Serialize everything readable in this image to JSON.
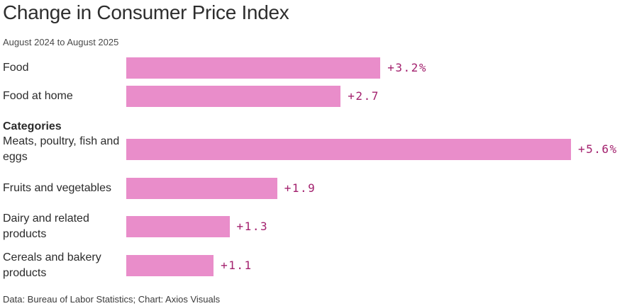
{
  "title": "Change in Consumer Price Index",
  "subtitle": "August 2024 to August 2025",
  "section_heading": "Categories",
  "footer": "Data: Bureau of Labor Statistics; Chart: Axios Visuals",
  "colors": {
    "bar": "#e98dca",
    "value_label": "#a3216e"
  },
  "chart_data": {
    "type": "bar",
    "orientation": "horizontal",
    "title": "Change in Consumer Price Index",
    "subtitle": "August 2024 to August 2025",
    "categories": [
      "Food",
      "Food at home",
      "Meats, poultry, fish and eggs",
      "Fruits and vegetables",
      "Dairy and related products",
      "Cereals and bakery products"
    ],
    "values": [
      3.2,
      2.7,
      5.6,
      1.9,
      1.3,
      1.1
    ],
    "value_labels": [
      "+3.2%",
      "+2.7",
      "+5.6%",
      "+1.9",
      "+1.3",
      "+1.1"
    ],
    "groups": [
      {
        "heading": "",
        "categories": [
          "Food",
          "Food at home"
        ]
      },
      {
        "heading": "Categories",
        "categories": [
          "Meats, poultry, fish and eggs",
          "Fruits and vegetables",
          "Dairy and related products",
          "Cereals and bakery products"
        ]
      }
    ],
    "xlabel": "",
    "ylabel": "",
    "xlim": [
      0,
      5.6
    ],
    "grid": false,
    "legend": "none"
  }
}
